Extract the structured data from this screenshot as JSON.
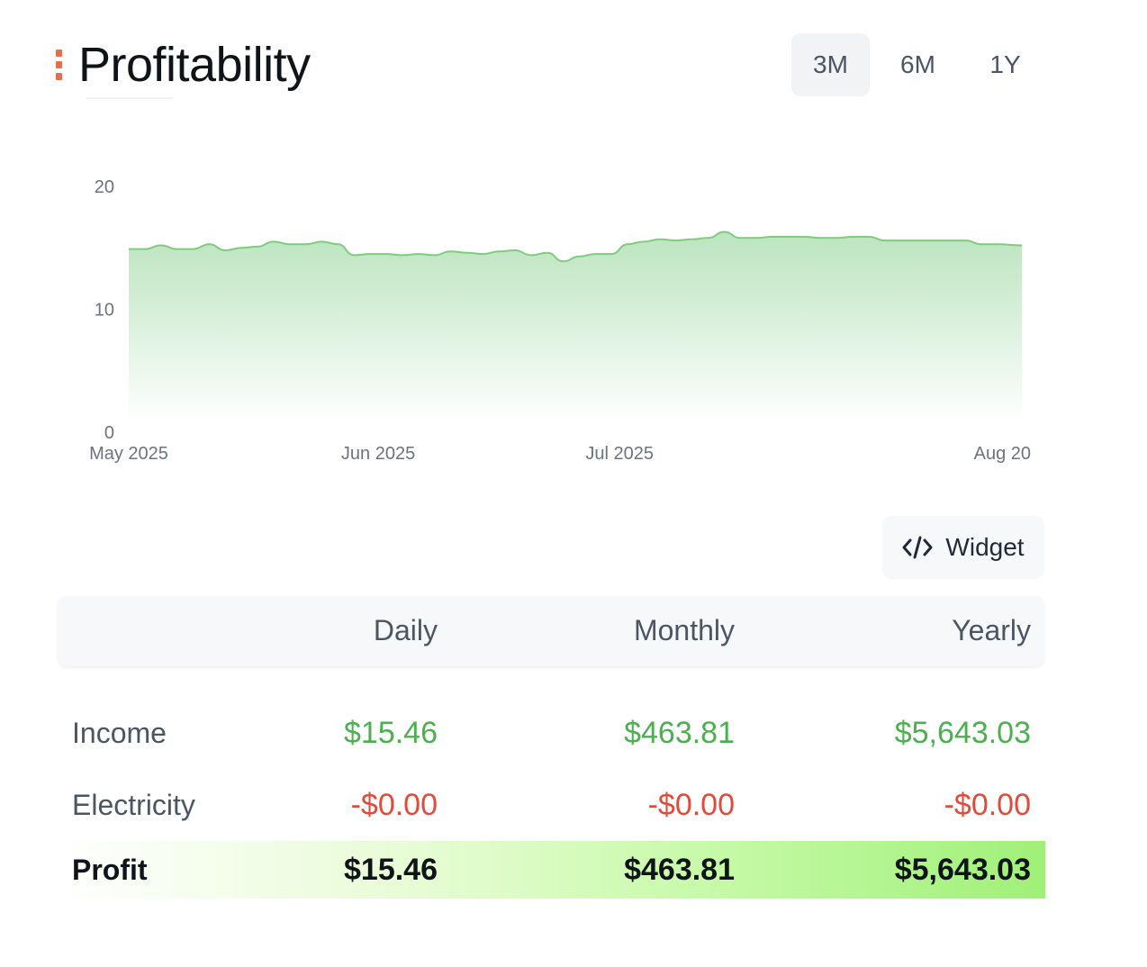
{
  "header": {
    "title": "Profitability",
    "ranges": [
      {
        "label": "3M",
        "active": true
      },
      {
        "label": "6M",
        "active": false
      },
      {
        "label": "1Y",
        "active": false
      }
    ]
  },
  "widget": {
    "label": "Widget",
    "icon": "code-icon"
  },
  "table": {
    "columns": [
      "Daily",
      "Monthly",
      "Yearly"
    ],
    "rows": [
      {
        "label": "Income",
        "values": [
          "$15.46",
          "$463.81",
          "$5,643.03"
        ],
        "tone": "positive"
      },
      {
        "label": "Electricity",
        "values": [
          "-$0.00",
          "-$0.00",
          "-$0.00"
        ],
        "tone": "negative"
      }
    ],
    "total": {
      "label": "Profit",
      "values": [
        "$15.46",
        "$463.81",
        "$5,643.03"
      ]
    }
  },
  "colors": {
    "accent": "#e0704f",
    "positive": "#4caf50",
    "negative": "#e04b3c",
    "line": "#7fcc7f"
  },
  "chart_data": {
    "type": "area",
    "title": "",
    "xlabel": "",
    "ylabel": "",
    "ylim": [
      0,
      20
    ],
    "yticks": [
      0,
      10,
      20
    ],
    "grid": false,
    "x_tick_labels": [
      "May 2025",
      "Jun 2025",
      "Jul 2025",
      "Aug 20"
    ],
    "x": [
      "2025-05-01",
      "2025-05-03",
      "2025-05-05",
      "2025-05-07",
      "2025-05-09",
      "2025-05-11",
      "2025-05-13",
      "2025-05-15",
      "2025-05-17",
      "2025-05-19",
      "2025-05-21",
      "2025-05-23",
      "2025-05-25",
      "2025-05-27",
      "2025-05-29",
      "2025-05-31",
      "2025-06-02",
      "2025-06-04",
      "2025-06-06",
      "2025-06-08",
      "2025-06-10",
      "2025-06-12",
      "2025-06-14",
      "2025-06-16",
      "2025-06-18",
      "2025-06-20",
      "2025-06-22",
      "2025-06-24",
      "2025-06-26",
      "2025-06-28",
      "2025-06-30",
      "2025-07-02",
      "2025-07-04",
      "2025-07-06",
      "2025-07-08",
      "2025-07-10",
      "2025-07-12",
      "2025-07-14",
      "2025-07-16",
      "2025-07-18",
      "2025-07-20",
      "2025-07-22",
      "2025-07-24",
      "2025-07-26",
      "2025-07-28",
      "2025-07-30",
      "2025-08-01",
      "2025-08-03",
      "2025-08-05",
      "2025-08-07",
      "2025-08-09",
      "2025-08-11",
      "2025-08-13",
      "2025-08-15",
      "2025-08-17",
      "2025-08-20"
    ],
    "values": [
      14.9,
      14.9,
      15.2,
      14.9,
      14.9,
      15.3,
      14.8,
      15.0,
      15.1,
      15.5,
      15.3,
      15.3,
      15.5,
      15.3,
      14.4,
      14.5,
      14.5,
      14.4,
      14.5,
      14.4,
      14.7,
      14.6,
      14.5,
      14.7,
      14.8,
      14.4,
      14.6,
      13.9,
      14.3,
      14.5,
      14.5,
      15.3,
      15.5,
      15.7,
      15.6,
      15.7,
      15.8,
      16.3,
      15.8,
      15.8,
      15.9,
      15.9,
      15.9,
      15.8,
      15.8,
      15.9,
      15.9,
      15.6,
      15.6,
      15.6,
      15.6,
      15.6,
      15.6,
      15.3,
      15.3,
      15.2
    ]
  }
}
